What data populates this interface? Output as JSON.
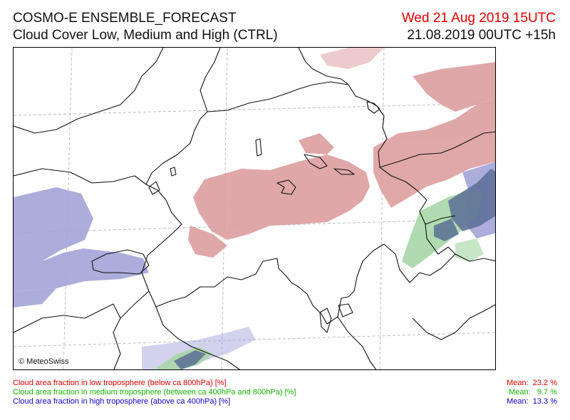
{
  "header": {
    "title_line1": "COSMO-E ENSEMBLE_FORECAST",
    "title_line2": "Cloud Cover Low, Medium and High (CTRL)",
    "valid_time": "Wed 21 Aug 2019 15UTC",
    "run_time": "21.08.2019 00UTC +15h"
  },
  "map": {
    "copyright": "© MeteoSwiss",
    "colors": {
      "low_cloud": "#dd9ea0",
      "medium_cloud": "#a7d6a7",
      "high_cloud": "#a4a4d8",
      "overlap_cloud": "#5a6f95"
    }
  },
  "legend": {
    "low": {
      "label": "Cloud area fraction in low troposphere (below ca 800hPa) [%]",
      "mean": "Mean:  23.2 %",
      "color": "#e00000"
    },
    "medium": {
      "label": "Cloud area fraction in medium troposphere (between ca 400hPa and 800hPa) [%]",
      "mean": "Mean:   9.7 %",
      "color": "#14b400"
    },
    "high": {
      "label": "Cloud area fraction in high troposphere (above ca 400hPa) [%]",
      "mean": "Mean:  13.3 %",
      "color": "#1400c8"
    }
  }
}
